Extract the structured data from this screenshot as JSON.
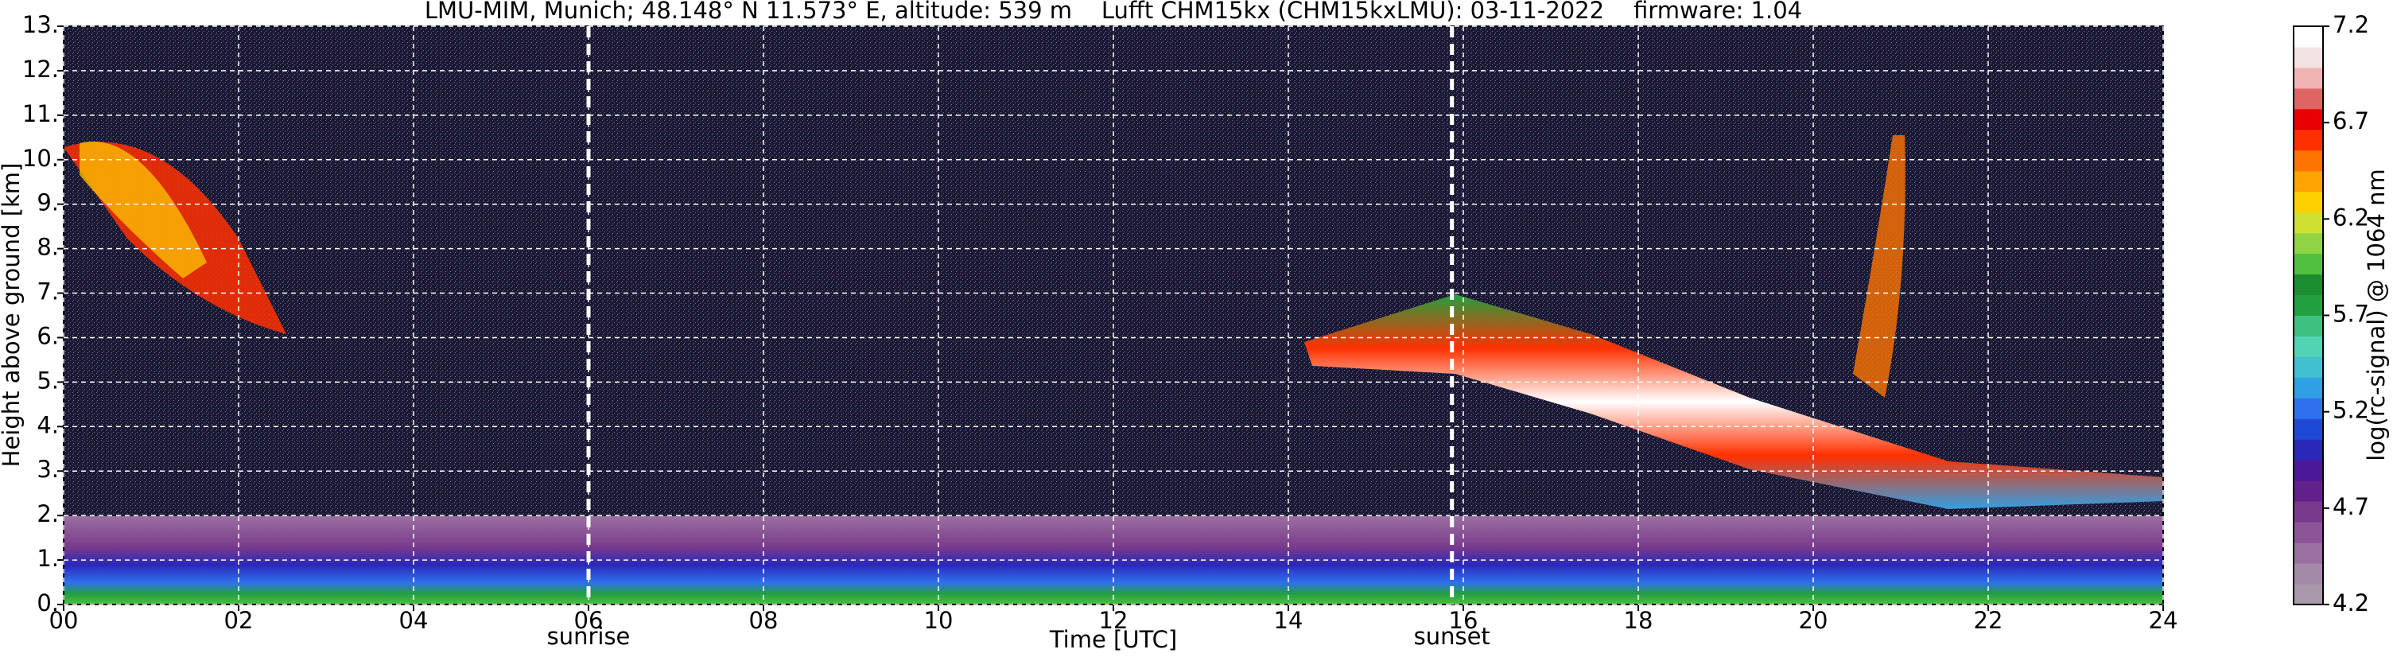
{
  "chart_data": {
    "type": "heatmap",
    "title": "LMU-MIM, Munich; 48.148° N 11.573° E, altitude: 539 m    Lufft CHM15kx (CHM15kxLMU): 03-11-2022    firmware: 1.04",
    "xlabel": "Time [UTC]",
    "ylabel": "Height above ground [km]",
    "xlim": [
      0,
      24
    ],
    "xticks": [
      {
        "value": 0,
        "label": "00"
      },
      {
        "value": 2,
        "label": "02"
      },
      {
        "value": 4,
        "label": "04"
      },
      {
        "value": 6,
        "label": "06"
      },
      {
        "value": 8,
        "label": "08"
      },
      {
        "value": 10,
        "label": "10"
      },
      {
        "value": 12,
        "label": "12"
      },
      {
        "value": 14,
        "label": "14"
      },
      {
        "value": 16,
        "label": "16"
      },
      {
        "value": 18,
        "label": "18"
      },
      {
        "value": 20,
        "label": "20"
      },
      {
        "value": 22,
        "label": "22"
      },
      {
        "value": 24,
        "label": "24"
      }
    ],
    "ylim": [
      0,
      13
    ],
    "yticks": [
      {
        "value": 0,
        "label": "0."
      },
      {
        "value": 1,
        "label": "1."
      },
      {
        "value": 2,
        "label": "2."
      },
      {
        "value": 3,
        "label": "3."
      },
      {
        "value": 4,
        "label": "4."
      },
      {
        "value": 5,
        "label": "5."
      },
      {
        "value": 6,
        "label": "6."
      },
      {
        "value": 7,
        "label": "7."
      },
      {
        "value": 8,
        "label": "8."
      },
      {
        "value": 9,
        "label": "9."
      },
      {
        "value": 10,
        "label": "10."
      },
      {
        "value": 11,
        "label": "11."
      },
      {
        "value": 12,
        "label": "12."
      },
      {
        "value": 13,
        "label": "13."
      }
    ],
    "grid": true,
    "annotations": [
      {
        "x": 6.0,
        "label": "sunrise"
      },
      {
        "x": 15.87,
        "label": "sunset"
      }
    ],
    "colorbar": {
      "label": "log(rc-signal) @ 1064 nm",
      "lim": [
        4.2,
        7.2
      ],
      "ticks": [
        4.2,
        4.7,
        5.2,
        5.7,
        6.2,
        6.7,
        7.2
      ],
      "colors": [
        "#a898a8",
        "#a48aa8",
        "#9a70a0",
        "#8c5598",
        "#7a3a8c",
        "#64208a",
        "#4a1898",
        "#2a28b8",
        "#2048d8",
        "#2f70ee",
        "#30a0e4",
        "#40c0d0",
        "#50d4b4",
        "#3cc080",
        "#22a040",
        "#1c8c30",
        "#50c040",
        "#90d444",
        "#d0e030",
        "#ffd000",
        "#ffa400",
        "#ff7400",
        "#ff3000",
        "#e80000",
        "#e06464",
        "#f0b4b4",
        "#f2e2e2",
        "#ffffff"
      ]
    }
  }
}
